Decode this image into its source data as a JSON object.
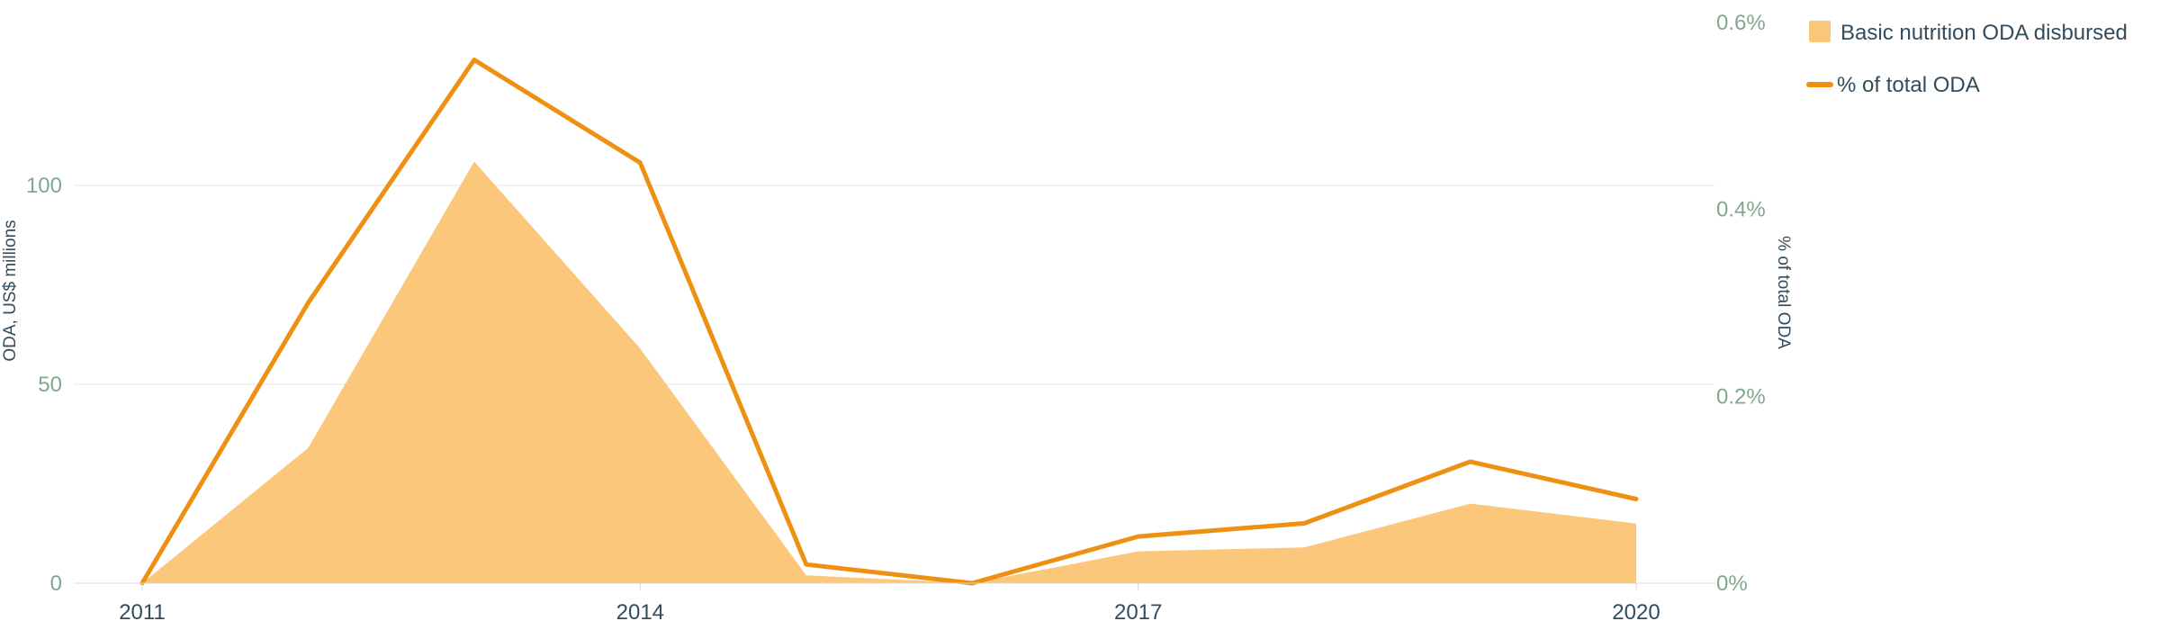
{
  "chart_data": {
    "type": "area",
    "x": [
      2011,
      2012,
      2013,
      2014,
      2015,
      2016,
      2017,
      2018,
      2019,
      2020
    ],
    "series": [
      {
        "name": "Basic nutrition ODA disbursed",
        "type": "area",
        "axis": "left",
        "values": [
          0,
          34,
          106,
          59,
          2,
          0,
          8,
          9,
          20,
          15
        ],
        "color": "#fbc77b"
      },
      {
        "name": "% of total ODA",
        "type": "line",
        "axis": "right",
        "values": [
          0,
          0.3,
          0.56,
          0.45,
          0.02,
          0,
          0.05,
          0.064,
          0.13,
          0.09
        ],
        "color": "#ee9112"
      }
    ],
    "left_axis": {
      "label": "ODA, US$ millions",
      "ticks": [
        "0",
        "50",
        "100"
      ],
      "ylim": [
        0,
        140
      ]
    },
    "right_axis": {
      "label": "% of total ODA",
      "ticks": [
        "0%",
        "0.2%",
        "0.4%",
        "0.6%"
      ],
      "ylim": [
        0,
        0.6
      ]
    },
    "x_ticks": [
      "2011",
      "2014",
      "2017",
      "2020"
    ],
    "legend": {
      "position": "top-right",
      "items": [
        "Basic nutrition ODA disbursed",
        "% of total ODA"
      ]
    },
    "grid": true
  }
}
